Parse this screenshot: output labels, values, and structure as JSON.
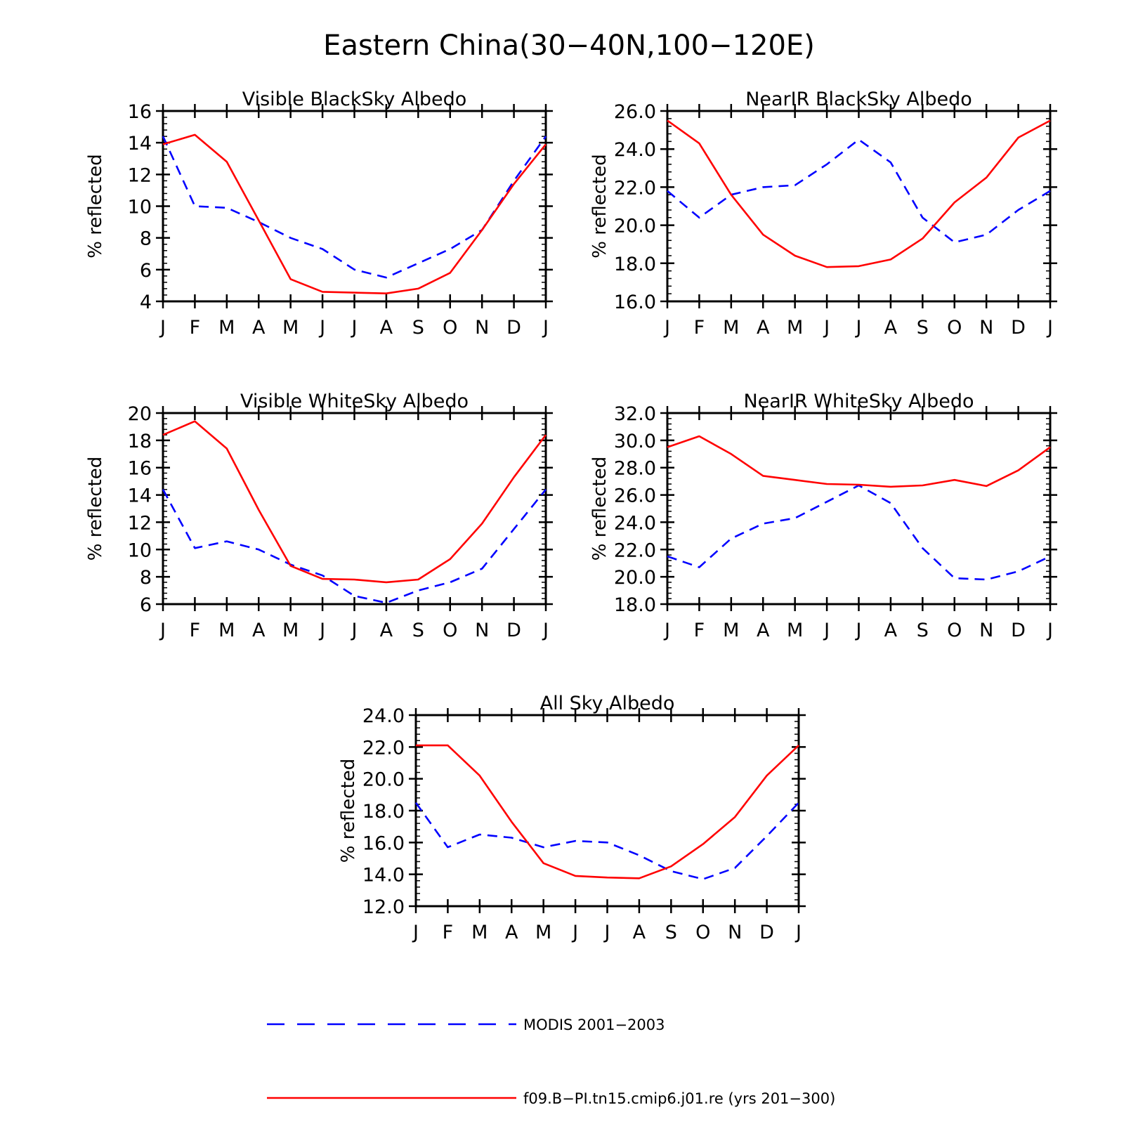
{
  "figure": {
    "title": "Eastern China(30−40N,100−120E)",
    "legend": [
      {
        "label": "MODIS 2001−2003",
        "color": "#0000ff",
        "style": "dashed"
      },
      {
        "label": "f09.B−PI.tn15.cmip6.j01.re (yrs 201−300)",
        "color": "#ff0000",
        "style": "solid"
      }
    ]
  },
  "chart_data": [
    {
      "type": "line",
      "title": "Visible BlackSky Albedo",
      "ylabel": "% reflected",
      "xlabel": "",
      "categories": [
        "J",
        "F",
        "M",
        "A",
        "M",
        "J",
        "J",
        "A",
        "S",
        "O",
        "N",
        "D",
        "J"
      ],
      "ylim": [
        4,
        16
      ],
      "yticks": [
        4,
        6,
        8,
        10,
        12,
        14,
        16
      ],
      "ytick_labels": [
        "4",
        "6",
        "8",
        "10",
        "12",
        "14",
        "16"
      ],
      "series": [
        {
          "name": "MODIS 2001−2003",
          "color": "#0000ff",
          "style": "dashed",
          "values": [
            14.4,
            10.0,
            9.9,
            9.0,
            8.0,
            7.3,
            6.0,
            5.5,
            6.4,
            7.3,
            8.5,
            11.6,
            14.4
          ]
        },
        {
          "name": "f09.B−PI.tn15.cmip6.j01.re (yrs 201−300)",
          "color": "#ff0000",
          "style": "solid",
          "values": [
            13.9,
            14.5,
            12.8,
            9.1,
            5.4,
            4.6,
            4.55,
            4.5,
            4.8,
            5.8,
            8.5,
            11.4,
            13.9
          ]
        }
      ]
    },
    {
      "type": "line",
      "title": "NearIR BlackSky Albedo",
      "ylabel": "% reflected",
      "xlabel": "",
      "categories": [
        "J",
        "F",
        "M",
        "A",
        "M",
        "J",
        "J",
        "A",
        "S",
        "O",
        "N",
        "D",
        "J"
      ],
      "ylim": [
        16,
        26
      ],
      "yticks": [
        16,
        18,
        20,
        22,
        24,
        26
      ],
      "ytick_labels": [
        "16.0",
        "18.0",
        "20.0",
        "22.0",
        "24.0",
        "26.0"
      ],
      "series": [
        {
          "name": "MODIS 2001−2003",
          "color": "#0000ff",
          "style": "dashed",
          "values": [
            21.8,
            20.4,
            21.6,
            22.0,
            22.1,
            23.2,
            24.5,
            23.3,
            20.4,
            19.1,
            19.5,
            20.8,
            21.8
          ]
        },
        {
          "name": "f09.B−PI.tn15.cmip6.j01.re (yrs 201−300)",
          "color": "#ff0000",
          "style": "solid",
          "values": [
            25.5,
            24.3,
            21.6,
            19.5,
            18.4,
            17.8,
            17.85,
            18.2,
            19.3,
            21.2,
            22.5,
            24.6,
            25.5
          ]
        }
      ]
    },
    {
      "type": "line",
      "title": "Visible WhiteSky Albedo",
      "ylabel": "% reflected",
      "xlabel": "",
      "categories": [
        "J",
        "F",
        "M",
        "A",
        "M",
        "J",
        "J",
        "A",
        "S",
        "O",
        "N",
        "D",
        "J"
      ],
      "ylim": [
        6,
        20
      ],
      "yticks": [
        6,
        8,
        10,
        12,
        14,
        16,
        18,
        20
      ],
      "ytick_labels": [
        "6",
        "8",
        "10",
        "12",
        "14",
        "16",
        "18",
        "20"
      ],
      "series": [
        {
          "name": "MODIS 2001−2003",
          "color": "#0000ff",
          "style": "dashed",
          "values": [
            14.4,
            10.1,
            10.6,
            10.0,
            8.9,
            8.1,
            6.6,
            6.1,
            7.0,
            7.6,
            8.6,
            11.5,
            14.4
          ]
        },
        {
          "name": "f09.B−PI.tn15.cmip6.j01.re (yrs 201−300)",
          "color": "#ff0000",
          "style": "solid",
          "values": [
            18.4,
            19.4,
            17.4,
            12.9,
            8.8,
            7.85,
            7.8,
            7.6,
            7.8,
            9.3,
            11.9,
            15.3,
            18.4
          ]
        }
      ]
    },
    {
      "type": "line",
      "title": "NearIR WhiteSky Albedo",
      "ylabel": "% reflected",
      "xlabel": "",
      "categories": [
        "J",
        "F",
        "M",
        "A",
        "M",
        "J",
        "J",
        "A",
        "S",
        "O",
        "N",
        "D",
        "J"
      ],
      "ylim": [
        18,
        32
      ],
      "yticks": [
        18,
        20,
        22,
        24,
        26,
        28,
        30,
        32
      ],
      "ytick_labels": [
        "18.0",
        "20.0",
        "22.0",
        "24.0",
        "26.0",
        "28.0",
        "30.0",
        "32.0"
      ],
      "series": [
        {
          "name": "MODIS 2001−2003",
          "color": "#0000ff",
          "style": "dashed",
          "values": [
            21.5,
            20.7,
            22.8,
            23.9,
            24.3,
            25.5,
            26.7,
            25.4,
            22.1,
            19.9,
            19.8,
            20.4,
            21.5
          ]
        },
        {
          "name": "f09.B−PI.tn15.cmip6.j01.re (yrs 201−300)",
          "color": "#ff0000",
          "style": "solid",
          "values": [
            29.5,
            30.3,
            29.0,
            27.4,
            27.1,
            26.8,
            26.75,
            26.6,
            26.7,
            27.1,
            26.65,
            27.8,
            29.5
          ]
        }
      ]
    },
    {
      "type": "line",
      "title": "All Sky Albedo",
      "ylabel": "% reflected",
      "xlabel": "",
      "categories": [
        "J",
        "F",
        "M",
        "A",
        "M",
        "J",
        "J",
        "A",
        "S",
        "O",
        "N",
        "D",
        "J"
      ],
      "ylim": [
        12,
        24
      ],
      "yticks": [
        12,
        14,
        16,
        18,
        20,
        22,
        24
      ],
      "ytick_labels": [
        "12.0",
        "14.0",
        "16.0",
        "18.0",
        "20.0",
        "22.0",
        "24.0"
      ],
      "series": [
        {
          "name": "MODIS 2001−2003",
          "color": "#0000ff",
          "style": "dashed",
          "values": [
            18.5,
            15.7,
            16.5,
            16.3,
            15.7,
            16.1,
            16.0,
            15.2,
            14.2,
            13.7,
            14.4,
            16.4,
            18.5
          ]
        },
        {
          "name": "f09.B−PI.tn15.cmip6.j01.re (yrs 201−300)",
          "color": "#ff0000",
          "style": "solid",
          "values": [
            22.1,
            22.1,
            20.2,
            17.3,
            14.7,
            13.9,
            13.8,
            13.75,
            14.5,
            15.9,
            17.6,
            20.2,
            22.1
          ]
        }
      ]
    }
  ]
}
